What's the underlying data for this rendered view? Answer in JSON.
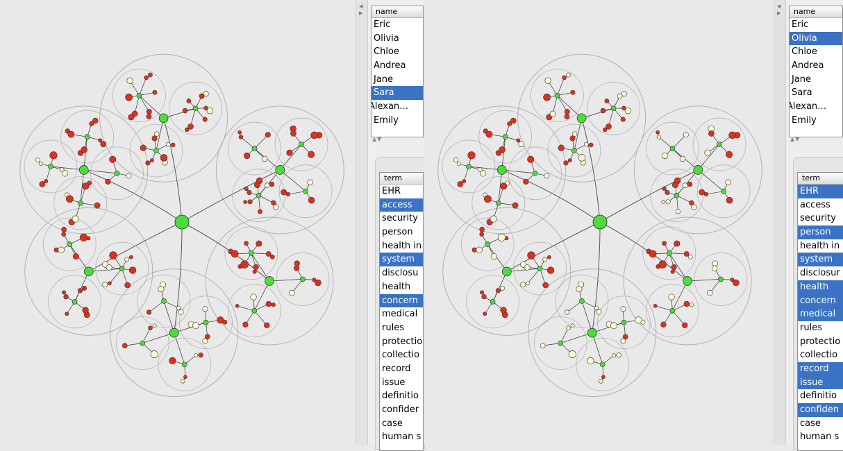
{
  "left_view": {
    "names": {
      "header": "name",
      "items": [
        {
          "label": "Eric",
          "selected": false
        },
        {
          "label": "Olivia",
          "selected": false
        },
        {
          "label": "Chloe",
          "selected": false
        },
        {
          "label": "Andrea",
          "selected": false
        },
        {
          "label": "Jane",
          "selected": false
        },
        {
          "label": "Sara",
          "selected": true
        },
        {
          "label": "Alexan…",
          "selected": false
        },
        {
          "label": "Emily",
          "selected": false
        }
      ]
    },
    "terms": {
      "header": "term",
      "items": [
        {
          "label": "EHR",
          "selected": false
        },
        {
          "label": "access",
          "selected": true
        },
        {
          "label": "security",
          "selected": false
        },
        {
          "label": "person",
          "selected": false
        },
        {
          "label": "health in",
          "selected": false
        },
        {
          "label": "system",
          "selected": true
        },
        {
          "label": "disclosu",
          "selected": false
        },
        {
          "label": "health",
          "selected": false
        },
        {
          "label": "concern",
          "selected": true
        },
        {
          "label": "medical",
          "selected": false
        },
        {
          "label": "rules",
          "selected": false
        },
        {
          "label": "protectio",
          "selected": false
        },
        {
          "label": "collectio",
          "selected": false
        },
        {
          "label": "record",
          "selected": false
        },
        {
          "label": "issue",
          "selected": false
        },
        {
          "label": "definitio",
          "selected": false
        },
        {
          "label": "confider",
          "selected": false
        },
        {
          "label": "case",
          "selected": false
        },
        {
          "label": "human s",
          "selected": false
        }
      ]
    }
  },
  "right_view": {
    "names": {
      "header": "name",
      "items": [
        {
          "label": "Eric",
          "selected": false
        },
        {
          "label": "Olivia",
          "selected": true
        },
        {
          "label": "Chloe",
          "selected": false
        },
        {
          "label": "Andrea",
          "selected": false
        },
        {
          "label": "Jane",
          "selected": false
        },
        {
          "label": "Sara",
          "selected": false
        },
        {
          "label": "Alexan…",
          "selected": false
        },
        {
          "label": "Emily",
          "selected": false
        }
      ]
    },
    "terms": {
      "header": "term",
      "items": [
        {
          "label": "EHR",
          "selected": true
        },
        {
          "label": "access",
          "selected": false
        },
        {
          "label": "security",
          "selected": false
        },
        {
          "label": "person",
          "selected": true
        },
        {
          "label": "health in",
          "selected": false
        },
        {
          "label": "system",
          "selected": true
        },
        {
          "label": "disclosur",
          "selected": false
        },
        {
          "label": "health",
          "selected": true
        },
        {
          "label": "concern",
          "selected": true
        },
        {
          "label": "medical",
          "selected": true
        },
        {
          "label": "rules",
          "selected": false
        },
        {
          "label": "protectio",
          "selected": false
        },
        {
          "label": "collectio",
          "selected": false
        },
        {
          "label": "record",
          "selected": true
        },
        {
          "label": "issue",
          "selected": true
        },
        {
          "label": "definitio",
          "selected": false
        },
        {
          "label": "confiden",
          "selected": true
        },
        {
          "label": "case",
          "selected": false
        },
        {
          "label": "human s",
          "selected": false
        }
      ]
    }
  },
  "colors": {
    "selection": "#3a73c4",
    "node_green": "#4cdc3c",
    "node_red": "#e0301c",
    "node_cream": "#fcf8d0",
    "circle_stroke": "#b0b0b0",
    "background": "#e9e9e9"
  },
  "icons": {
    "divider_arrows": "triangle-left-right-icon",
    "scroll_arrows": "scroll-up-down-icon",
    "grip": "resize-grip-icon"
  }
}
